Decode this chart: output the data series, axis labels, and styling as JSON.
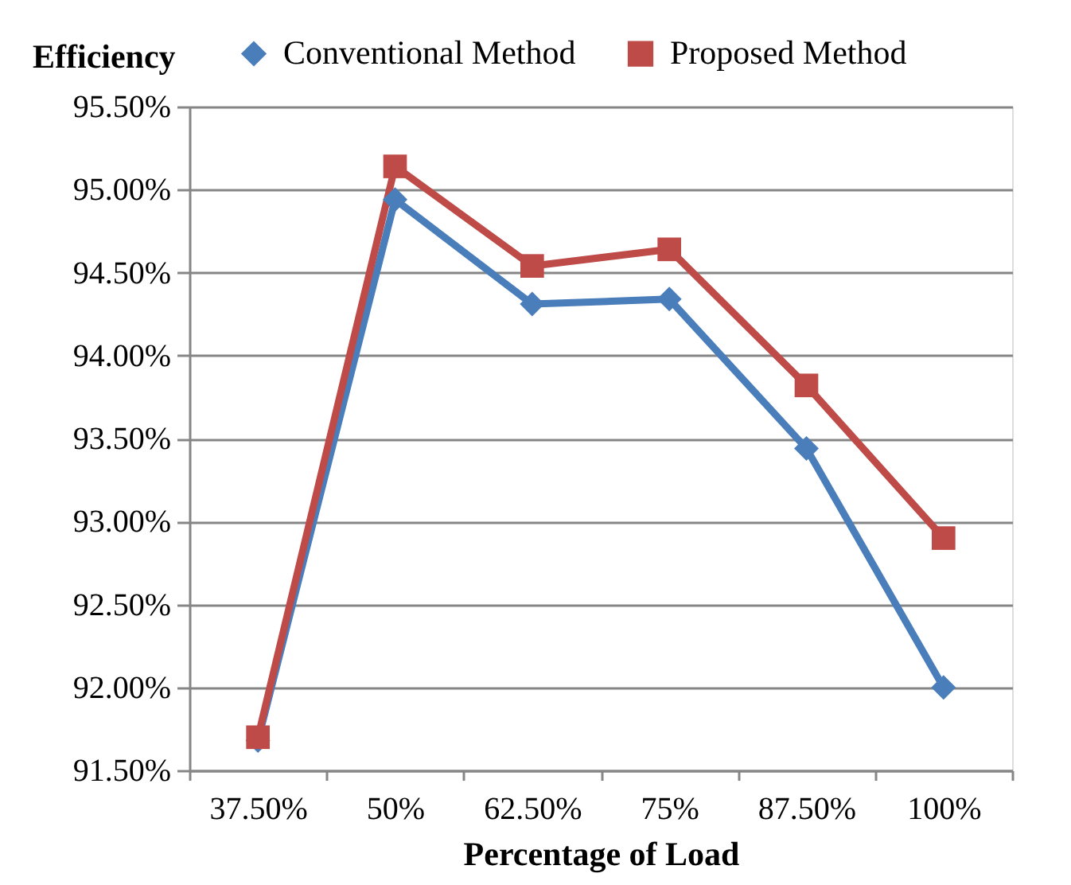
{
  "chart_data": {
    "type": "line",
    "xlabel": "Percentage of Load",
    "ylabel": "Efficiency",
    "categories": [
      "37.50%",
      "50%",
      "62.50%",
      "75%",
      "87.50%",
      "100%"
    ],
    "series": [
      {
        "name": "Conventional Method",
        "color": "#4a7ebb",
        "marker": "diamond",
        "values": [
          91.68,
          94.94,
          94.31,
          94.34,
          93.44,
          92.0
        ]
      },
      {
        "name": "Proposed Method",
        "color": "#be4b48",
        "marker": "square",
        "values": [
          91.7,
          95.14,
          94.54,
          94.64,
          93.82,
          92.9
        ]
      }
    ],
    "ylim": [
      91.5,
      95.5
    ],
    "yticks": [
      {
        "value": 91.5,
        "label": "91.50%"
      },
      {
        "value": 92.0,
        "label": "92.00%"
      },
      {
        "value": 92.5,
        "label": "92.50%"
      },
      {
        "value": 93.0,
        "label": "93.00%"
      },
      {
        "value": 93.5,
        "label": "93.50%"
      },
      {
        "value": 94.0,
        "label": "94.00%"
      },
      {
        "value": 94.5,
        "label": "94.50%"
      },
      {
        "value": 95.0,
        "label": "95.00%"
      },
      {
        "value": 95.5,
        "label": "95.50%"
      }
    ],
    "grid": "y",
    "legend": "top",
    "line_style": "solid"
  }
}
